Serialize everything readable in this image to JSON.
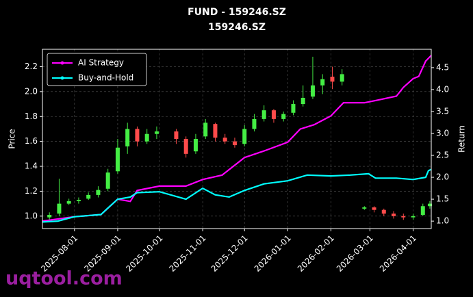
{
  "chart_data": {
    "type": "candlestick",
    "title": "FUND - 159246.SZ",
    "subtitle": "159246.SZ",
    "ylabel": "Price",
    "y2label": "Return",
    "x": [
      "2025-07-14",
      "2025-07-21",
      "2025-07-28",
      "2025-08-04",
      "2025-08-11",
      "2025-08-18",
      "2025-08-25",
      "2025-09-01",
      "2025-09-08",
      "2025-09-15",
      "2025-09-22",
      "2025-09-29",
      "2025-10-13",
      "2025-10-20",
      "2025-10-27",
      "2025-11-03",
      "2025-11-10",
      "2025-11-17",
      "2025-11-24",
      "2025-12-01",
      "2025-12-08",
      "2025-12-15",
      "2025-12-22",
      "2025-12-29",
      "2026-01-05",
      "2026-01-12",
      "2026-01-19",
      "2026-01-26",
      "2026-02-02",
      "2026-02-09",
      "2026-02-25",
      "2026-03-04",
      "2026-03-11",
      "2026-03-18",
      "2026-03-25",
      "2026-04-01",
      "2026-04-08",
      "2026-04-13"
    ],
    "open": [
      0.99,
      1.02,
      1.1,
      1.12,
      1.14,
      1.17,
      1.22,
      1.36,
      1.56,
      1.7,
      1.6,
      1.66,
      1.68,
      1.62,
      1.52,
      1.64,
      1.74,
      1.63,
      1.6,
      1.58,
      1.7,
      1.78,
      1.85,
      1.78,
      1.83,
      1.9,
      1.96,
      2.05,
      2.12,
      2.08,
      1.06,
      1.07,
      1.05,
      1.02,
      1.0,
      0.99,
      1.01,
      1.08
    ],
    "high": [
      1.03,
      1.3,
      1.14,
      1.15,
      1.19,
      1.24,
      1.38,
      1.62,
      1.75,
      1.72,
      1.7,
      1.72,
      1.7,
      1.64,
      1.66,
      1.78,
      1.75,
      1.66,
      1.63,
      1.73,
      1.82,
      1.89,
      1.86,
      1.84,
      1.93,
      2.05,
      2.28,
      2.14,
      2.2,
      2.18,
      1.08,
      1.08,
      1.06,
      1.04,
      1.02,
      1.02,
      1.1,
      1.12
    ],
    "low": [
      0.97,
      1.0,
      1.09,
      1.1,
      1.13,
      1.15,
      1.2,
      1.34,
      1.5,
      1.56,
      1.58,
      1.62,
      1.58,
      1.47,
      1.5,
      1.62,
      1.6,
      1.58,
      1.55,
      1.56,
      1.68,
      1.76,
      1.75,
      1.76,
      1.81,
      1.88,
      1.94,
      1.98,
      2.02,
      2.05,
      1.05,
      1.03,
      1.0,
      0.98,
      0.97,
      0.97,
      1.0,
      1.06
    ],
    "close": [
      1.01,
      1.1,
      1.12,
      1.13,
      1.17,
      1.21,
      1.35,
      1.55,
      1.7,
      1.6,
      1.66,
      1.68,
      1.62,
      1.5,
      1.62,
      1.75,
      1.63,
      1.6,
      1.57,
      1.7,
      1.78,
      1.85,
      1.78,
      1.82,
      1.9,
      1.95,
      2.05,
      2.1,
      2.08,
      2.14,
      1.07,
      1.05,
      1.02,
      1.0,
      0.99,
      1.0,
      1.08,
      1.1
    ],
    "up_color": "#44ee44",
    "down_color": "#ff4b4b",
    "lines": [
      {
        "name": "AI Strategy",
        "color": "#ff00ff",
        "axis": "y2",
        "x": [
          "2025-07-09",
          "2025-08-01",
          "2025-08-20",
          "2025-09-01",
          "2025-09-10",
          "2025-09-15",
          "2025-10-01",
          "2025-10-20",
          "2025-11-01",
          "2025-11-15",
          "2025-12-01",
          "2025-12-15",
          "2026-01-01",
          "2026-01-10",
          "2026-01-20",
          "2026-02-01",
          "2026-02-10",
          "2026-02-25",
          "2026-03-05",
          "2026-03-20",
          "2026-03-25",
          "2026-04-01",
          "2026-04-05",
          "2026-04-10",
          "2026-04-14"
        ],
        "values": [
          1.0,
          1.1,
          1.15,
          1.5,
          1.45,
          1.7,
          1.8,
          1.8,
          1.95,
          2.05,
          2.45,
          2.6,
          2.8,
          3.1,
          3.2,
          3.4,
          3.7,
          3.7,
          3.75,
          3.85,
          4.05,
          4.25,
          4.3,
          4.65,
          4.78
        ]
      },
      {
        "name": "Buy-and-Hold",
        "color": "#00ffff",
        "axis": "y2",
        "x": [
          "2025-07-09",
          "2025-07-20",
          "2025-08-01",
          "2025-08-20",
          "2025-08-25",
          "2025-09-01",
          "2025-09-10",
          "2025-09-15",
          "2025-10-01",
          "2025-10-20",
          "2025-11-01",
          "2025-11-10",
          "2025-11-20",
          "2025-12-01",
          "2025-12-15",
          "2026-01-01",
          "2026-01-15",
          "2026-02-01",
          "2026-02-15",
          "2026-02-28",
          "2026-03-05",
          "2026-03-20",
          "2026-04-01",
          "2026-04-10",
          "2026-04-12",
          "2026-04-14"
        ],
        "values": [
          0.98,
          1.0,
          1.1,
          1.15,
          1.3,
          1.5,
          1.55,
          1.65,
          1.67,
          1.5,
          1.75,
          1.6,
          1.55,
          1.7,
          1.85,
          1.92,
          2.05,
          2.03,
          2.05,
          2.08,
          1.98,
          1.98,
          1.95,
          2.0,
          2.15,
          2.18
        ]
      }
    ],
    "xlim": [
      "2025-07-09",
      "2026-04-14"
    ],
    "xticks": [
      "2025-08-01",
      "2025-09-01",
      "2025-10-01",
      "2025-11-01",
      "2025-12-01",
      "2026-01-01",
      "2026-02-01",
      "2026-03-01",
      "2026-04-01"
    ],
    "ylim": [
      0.9,
      2.34
    ],
    "yticks": [
      {
        "value": 1,
        "label": "1.0"
      },
      1.2,
      1.4,
      1.6,
      1.8,
      {
        "value": 2,
        "label": "2.0"
      },
      2.2
    ],
    "y2lim": [
      0.83,
      4.92
    ],
    "y2ticks": [
      {
        "value": 1,
        "label": "1.0"
      },
      1.5,
      {
        "value": 2,
        "label": "2.0"
      },
      2.5,
      {
        "value": 3,
        "label": "3.0"
      },
      3.5,
      {
        "value": 4,
        "label": "4.0"
      },
      4.5
    ],
    "grid": true,
    "legend": "upper left"
  },
  "watermark": "uqtool.com"
}
